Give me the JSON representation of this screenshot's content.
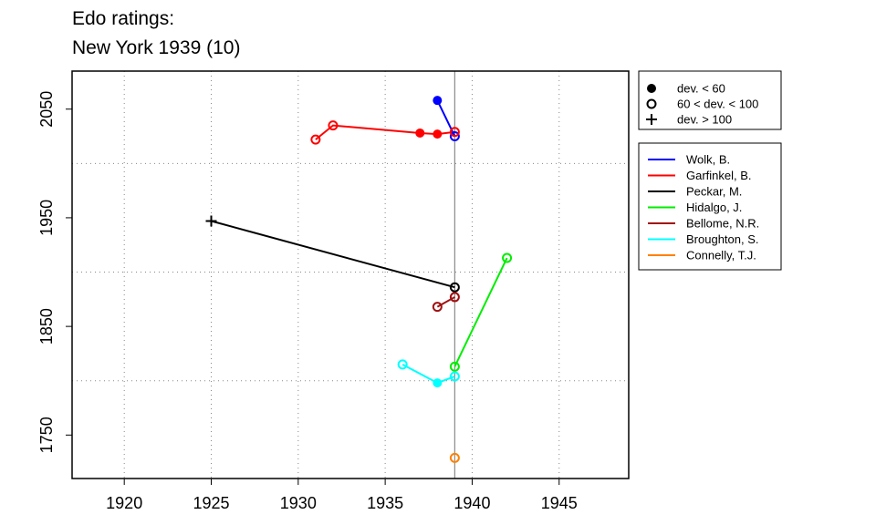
{
  "chart_data": {
    "type": "line",
    "title_lines": [
      "Edo ratings:",
      "New York 1939 (10)"
    ],
    "xlim": [
      1917,
      1949
    ],
    "ylim": [
      1710,
      2085
    ],
    "x_ticks": [
      1920,
      1925,
      1930,
      1935,
      1940,
      1945
    ],
    "y_ticks": [
      1750,
      1850,
      1950,
      2050
    ],
    "grid": true,
    "reference_line_x": 1939,
    "marker_legend": [
      {
        "label": "dev. < 60",
        "marker": "filled-circle"
      },
      {
        "label": "60 < dev. < 100",
        "marker": "open-circle"
      },
      {
        "label": "dev. > 100",
        "marker": "plus"
      }
    ],
    "series": [
      {
        "name": "Wolk, B.",
        "color": "#0000ff",
        "points": [
          [
            1938,
            2058,
            "filled-circle"
          ],
          [
            1939,
            2025,
            "open-circle"
          ]
        ]
      },
      {
        "name": "Garfinkel, B.",
        "color": "#ff0000",
        "points": [
          [
            1931,
            2022,
            "open-circle"
          ],
          [
            1932,
            2035,
            "open-circle"
          ],
          [
            1937,
            2028,
            "filled-circle"
          ],
          [
            1938,
            2027,
            "filled-circle"
          ],
          [
            1939,
            2029,
            "open-circle"
          ]
        ]
      },
      {
        "name": "Peckar, M.",
        "color": "#000000",
        "points": [
          [
            1925,
            1947,
            "plus"
          ],
          [
            1939,
            1886,
            "open-circle"
          ]
        ]
      },
      {
        "name": "Hidalgo, J.",
        "color": "#00ee00",
        "points": [
          [
            1939,
            1813,
            "open-circle"
          ],
          [
            1942,
            1913,
            "open-circle"
          ]
        ]
      },
      {
        "name": "Bellome, N.R.",
        "color": "#a01010",
        "points": [
          [
            1938,
            1868,
            "open-circle"
          ],
          [
            1939,
            1877,
            "open-circle"
          ]
        ]
      },
      {
        "name": "Broughton, S.",
        "color": "#00ffff",
        "points": [
          [
            1936,
            1815,
            "open-circle"
          ],
          [
            1938,
            1798,
            "filled-circle"
          ],
          [
            1939,
            1804,
            "open-circle"
          ]
        ]
      },
      {
        "name": "Connelly, T.J.",
        "color": "#ff8000",
        "points": [
          [
            1939,
            1729,
            "open-circle"
          ]
        ]
      }
    ]
  }
}
